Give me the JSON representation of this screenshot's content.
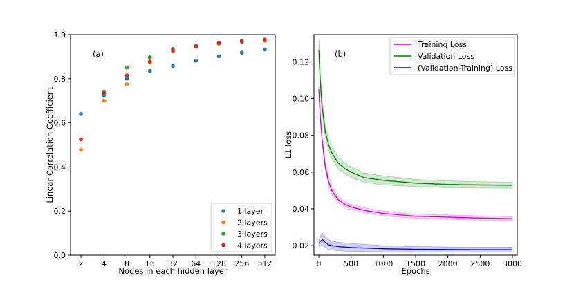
{
  "chart_data": [
    {
      "type": "scatter",
      "annotation": "(a)",
      "xlabel": "Nodes in each hidden layer",
      "ylabel": "Linear Correlation Coefficient",
      "categories": [
        "2",
        "4",
        "8",
        "16",
        "32",
        "64",
        "128",
        "256",
        "512"
      ],
      "yticks": [
        "0.0",
        "0.2",
        "0.4",
        "0.6",
        "0.8",
        "1.0"
      ],
      "ylim": [
        0,
        1
      ],
      "legend_position": "bottom-right",
      "series": [
        {
          "name": "1 layer",
          "color": "#1f77b4",
          "values": [
            0.64,
            0.725,
            0.8,
            0.835,
            0.857,
            0.882,
            0.902,
            0.918,
            0.933
          ]
        },
        {
          "name": "2 layers",
          "color": "#ff7f0e",
          "values": [
            0.478,
            0.7,
            0.775,
            0.873,
            0.925,
            0.945,
            0.958,
            0.967,
            0.972
          ]
        },
        {
          "name": "3 layers",
          "color": "#2ca02c",
          "values": [
            0.525,
            0.742,
            0.85,
            0.897,
            0.935,
            0.95,
            0.962,
            0.972,
            0.978
          ]
        },
        {
          "name": "4 layers",
          "color": "#d62728",
          "values": [
            0.525,
            0.735,
            0.815,
            0.878,
            0.928,
            0.947,
            0.962,
            0.97,
            0.975
          ]
        }
      ]
    },
    {
      "type": "line",
      "annotation": "(b)",
      "xlabel": "Epochs",
      "ylabel": "L1 loss",
      "xlim": [
        -75,
        3075
      ],
      "ylim": [
        0.0148,
        0.1348
      ],
      "xticks": [
        0,
        500,
        1000,
        1500,
        2000,
        2500,
        3000
      ],
      "yticks": [
        0.02,
        0.04,
        0.06,
        0.08,
        0.1,
        0.12
      ],
      "ytick_labels": [
        "0.02",
        "0.04",
        "0.06",
        "0.08",
        "0.10",
        "0.12"
      ],
      "legend_position": "top-right",
      "series": [
        {
          "name": "Training Loss",
          "color": "#cc00cc",
          "x": [
            0,
            20,
            50,
            100,
            150,
            200,
            300,
            400,
            500,
            700,
            1000,
            1500,
            2000,
            2500,
            3000
          ],
          "y": [
            0.105,
            0.092,
            0.078,
            0.063,
            0.055,
            0.05,
            0.045,
            0.0425,
            0.041,
            0.0392,
            0.0375,
            0.036,
            0.0355,
            0.035,
            0.0347
          ],
          "lower": [
            0.103,
            0.09,
            0.076,
            0.061,
            0.053,
            0.048,
            0.0432,
            0.041,
            0.0395,
            0.0378,
            0.0362,
            0.0348,
            0.0343,
            0.0338,
            0.0336
          ],
          "upper": [
            0.107,
            0.094,
            0.08,
            0.065,
            0.057,
            0.052,
            0.0468,
            0.044,
            0.0425,
            0.0406,
            0.0388,
            0.0372,
            0.0367,
            0.0362,
            0.0358
          ]
        },
        {
          "name": "Validation Loss",
          "color": "#008000",
          "x": [
            0,
            20,
            50,
            100,
            150,
            200,
            300,
            400,
            500,
            700,
            1000,
            1500,
            2000,
            2500,
            3000
          ],
          "y": [
            0.1265,
            0.111,
            0.096,
            0.082,
            0.075,
            0.0705,
            0.065,
            0.062,
            0.06,
            0.057,
            0.0555,
            0.054,
            0.0533,
            0.053,
            0.0528
          ],
          "lower": [
            0.121,
            0.106,
            0.092,
            0.079,
            0.072,
            0.0675,
            0.062,
            0.059,
            0.057,
            0.0545,
            0.053,
            0.052,
            0.0515,
            0.0513,
            0.0512
          ],
          "upper": [
            0.132,
            0.116,
            0.1,
            0.085,
            0.078,
            0.0735,
            0.068,
            0.065,
            0.063,
            0.0595,
            0.058,
            0.056,
            0.0552,
            0.0548,
            0.0545
          ]
        },
        {
          "name": "(Validation-Training) Loss",
          "color": "#0000cc",
          "x": [
            0,
            30,
            60,
            100,
            150,
            200,
            300,
            400,
            500,
            700,
            1000,
            1500,
            2000,
            2500,
            3000
          ],
          "y": [
            0.0212,
            0.0225,
            0.0232,
            0.0218,
            0.0205,
            0.02,
            0.0195,
            0.0192,
            0.019,
            0.0187,
            0.0183,
            0.018,
            0.0179,
            0.0178,
            0.0178
          ],
          "lower": [
            0.0195,
            0.02,
            0.02,
            0.019,
            0.018,
            0.0176,
            0.0172,
            0.017,
            0.0169,
            0.0167,
            0.0166,
            0.0165,
            0.0165,
            0.0164,
            0.0164
          ],
          "upper": [
            0.023,
            0.0255,
            0.0268,
            0.025,
            0.0232,
            0.0225,
            0.0218,
            0.0215,
            0.0212,
            0.0207,
            0.02,
            0.0195,
            0.0193,
            0.0192,
            0.0192
          ]
        }
      ]
    }
  ]
}
